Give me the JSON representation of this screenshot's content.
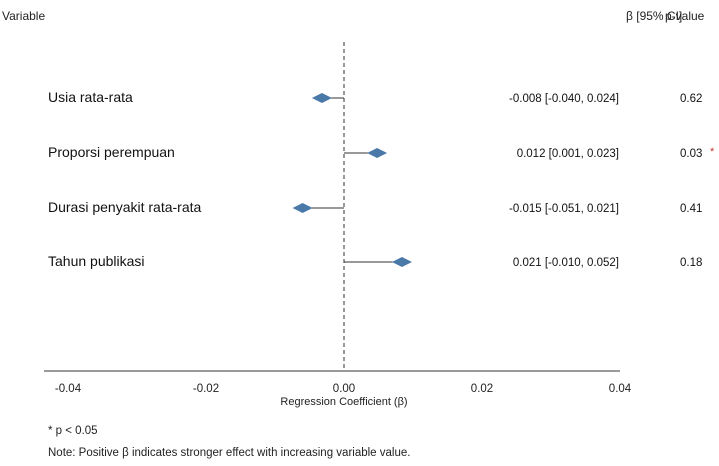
{
  "chart_data": {
    "type": "forest",
    "header": {
      "variable": "Variable",
      "ci": "β [95% CI]",
      "pvalue": "p-value"
    },
    "xlabel": "Regression Coefficient (β)",
    "xlim": [
      -0.04,
      0.04
    ],
    "x_ticks": [
      "-0.04",
      "-0.02",
      "0.00",
      "0.02",
      "0.04"
    ],
    "reference_line": 0.0,
    "rows": [
      {
        "label": "Usia rata-rata",
        "estimate": -0.008,
        "ci_low": -0.04,
        "ci_high": 0.024,
        "ci_text": "-0.008 [-0.040, 0.024]",
        "p": "0.62",
        "significant": false
      },
      {
        "label": "Proporsi perempuan",
        "estimate": 0.012,
        "ci_low": 0.001,
        "ci_high": 0.023,
        "ci_text": "0.012 [0.001, 0.023]",
        "p": "0.03",
        "significant": true
      },
      {
        "label": "Durasi penyakit rata-rata",
        "estimate": -0.015,
        "ci_low": -0.051,
        "ci_high": 0.021,
        "ci_text": "-0.015 [-0.051, 0.021]",
        "p": "0.41",
        "significant": false
      },
      {
        "label": "Tahun publikasi",
        "estimate": 0.021,
        "ci_low": -0.01,
        "ci_high": 0.052,
        "ci_text": "0.021 [-0.010, 0.052]",
        "p": "0.18",
        "significant": false
      }
    ],
    "significance_marker": "*",
    "colors": {
      "marker": "#4a78a8",
      "line": "#333333",
      "significance": "#c0392b"
    }
  },
  "notes": {
    "significance": "* p < 0.05",
    "interpretation": "Note: Positive β indicates stronger effect with increasing variable value."
  }
}
